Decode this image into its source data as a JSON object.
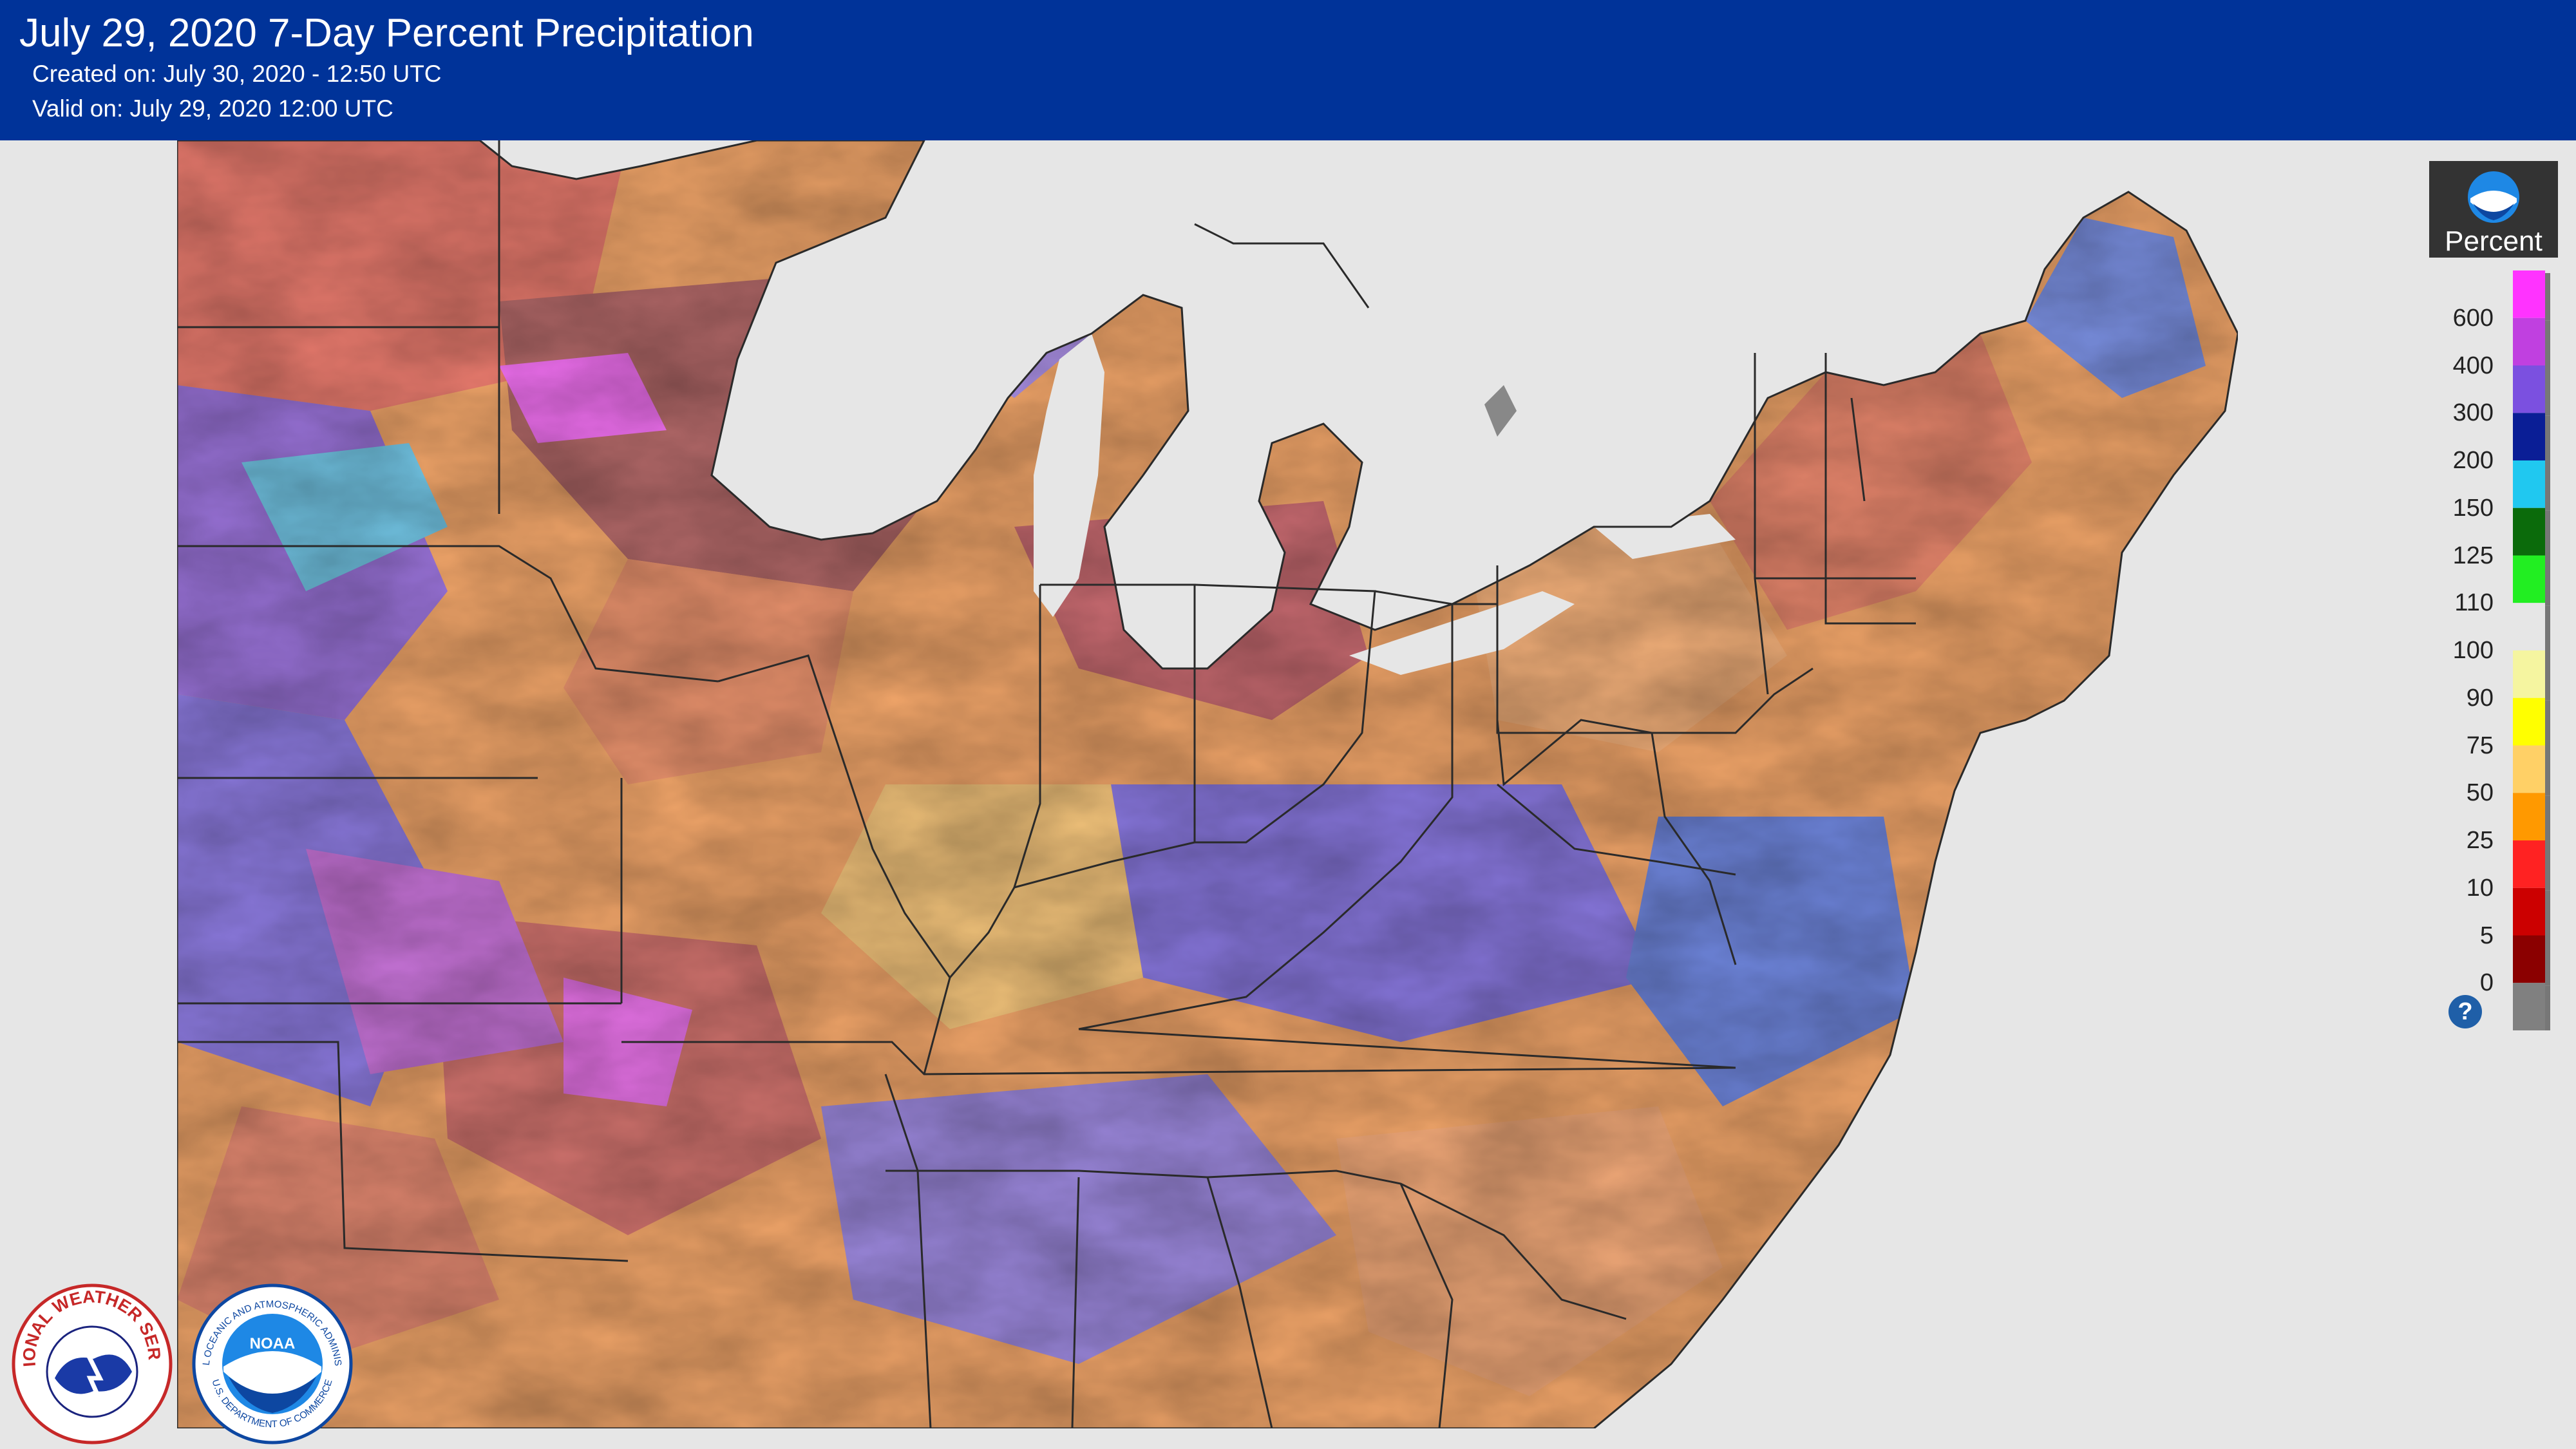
{
  "header": {
    "title": "July 29, 2020 7-Day Percent Precipitation",
    "created": "Created on: July 30, 2020 - 12:50 UTC",
    "valid": "Valid on: July 29, 2020 12:00 UTC"
  },
  "legend": {
    "units": "Percent",
    "labels": [
      "600",
      "400",
      "300",
      "200",
      "150",
      "125",
      "110",
      "100",
      "90",
      "75",
      "50",
      "25",
      "10",
      "5",
      "0"
    ],
    "colors": [
      "#ff33ff",
      "#c040e0",
      "#7b50e0",
      "#0a1e96",
      "#20c8f0",
      "#0b6b0b",
      "#22ee22",
      "#e6e6e6",
      "#f5f5a0",
      "#ffff00",
      "#ffd066",
      "#ff9900",
      "#ff2222",
      "#cc0000",
      "#8b0000",
      "#808080"
    ]
  },
  "colors": {
    "header_bg": "#003399",
    "page_bg": "#e6e6e6"
  },
  "icons": {
    "noaa_logo": "noaa-logo-icon",
    "nws_logo": "nws-logo-icon",
    "help": "help-icon"
  },
  "logos": {
    "nws_text": "NATIONAL WEATHER SERVICE",
    "noaa_text": "NATIONAL OCEANIC AND ATMOSPHERIC ADMINISTRATION",
    "noaa_dept": "U.S. DEPARTMENT OF COMMERCE",
    "noaa_center": "NOAA"
  }
}
